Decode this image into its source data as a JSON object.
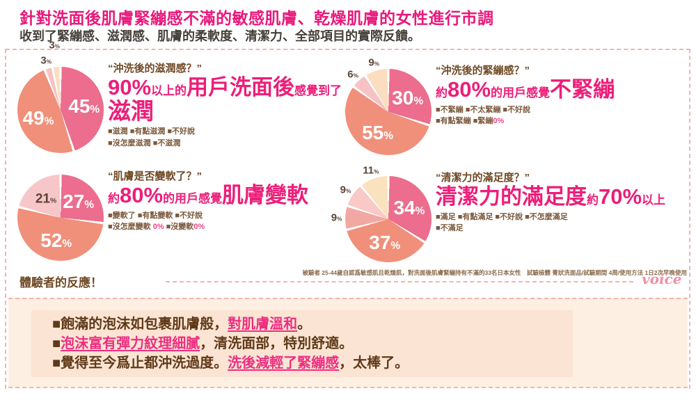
{
  "header": {
    "title": "針對洗面後肌膚緊繃感不滿的敏感肌膚、乾燥肌膚的女性進行市調",
    "subtitle": "收到了緊繃感、滋潤感、肌膚的柔軟度、清潔力、全部項目的實際反饋。"
  },
  "palette": {
    "title_pink": "#e9187b",
    "statement_pink": "#ed1e79",
    "question_brown": "#6f4a26",
    "legend_brown": "#7c5a3e",
    "dash_pink": "#f5b3b3",
    "box_cream": "#fdf0e2",
    "panel_peach": "#fbe4d3",
    "pie_dark_pink": "#ec6d8d",
    "pie_salmon": "#f0907a",
    "pie_light_pink": "#f6c2c4",
    "pie_cream": "#fbddc0"
  },
  "chart_data": [
    {
      "type": "pie",
      "question": "“沖洗後的滋潤感？”",
      "headline": [
        {
          "t": "90%",
          "big": 1
        },
        {
          "t": "以上的"
        },
        {
          "t": "用戶洗面後",
          "big": 1
        },
        {
          "t": "感覺到了"
        }
      ],
      "headline2": [
        {
          "t": "滋潤",
          "big": 1
        }
      ],
      "legend_lines": [
        [
          {
            "t": "■滋潤 ■有點滋潤 ■不好說"
          }
        ],
        [
          {
            "t": "■沒怎麼滋潤 ■不滋潤"
          }
        ]
      ],
      "labels": [
        "滋潤",
        "有點滋潤",
        "不好說",
        "沒怎麼滋潤"
      ],
      "values": [
        45,
        49,
        3,
        3
      ],
      "colors": [
        "#ec6d8d",
        "#f0907a",
        "#f6c2c4",
        "#fbddc0"
      ]
    },
    {
      "type": "pie",
      "question": "“沖洗後的緊繃感？”",
      "headline": [
        {
          "t": "約"
        },
        {
          "t": "80%",
          "big": 1
        },
        {
          "t": "的用戶感覺"
        },
        {
          "t": "不緊繃",
          "big": 1
        }
      ],
      "legend_lines": [
        [
          {
            "t": "■不緊繃 ■不太緊繃 ■不好說"
          }
        ],
        [
          {
            "t": "■有點緊繃 ■緊繃"
          },
          {
            "t": "0%",
            "pink": 1
          }
        ]
      ],
      "labels": [
        "不緊繃",
        "不太緊繃",
        "不好說",
        "有點緊繃"
      ],
      "values": [
        30,
        55,
        6,
        9
      ],
      "colors": [
        "#ec6d8d",
        "#f0907a",
        "#f6c2c4",
        "#fbddc0"
      ]
    },
    {
      "type": "pie",
      "question": "“肌膚是否變軟了？”",
      "headline": [
        {
          "t": "約"
        },
        {
          "t": "80%",
          "big": 1
        },
        {
          "t": "的用戶感覺"
        },
        {
          "t": "肌膚變軟",
          "big": 1
        }
      ],
      "legend_lines": [
        [
          {
            "t": "■變軟了 ■有點變軟 ■不好說"
          }
        ],
        [
          {
            "t": "■沒怎麼變軟 "
          },
          {
            "t": "0%",
            "pink": 1
          },
          {
            "t": " ■沒變軟"
          },
          {
            "t": "0%",
            "pink": 1
          }
        ]
      ],
      "labels": [
        "變軟了",
        "有點變軟",
        "不好說"
      ],
      "values": [
        27,
        52,
        21
      ],
      "colors": [
        "#ec6d8d",
        "#f0907a",
        "#f7c6c9"
      ]
    },
    {
      "type": "pie",
      "question": "“清潔力的滿足度？”",
      "headline": [
        {
          "t": "清潔力的滿足度",
          "big": 1
        },
        {
          "t": "約"
        },
        {
          "t": "70%",
          "big": 1
        },
        {
          "t": "以上"
        }
      ],
      "legend_lines": [
        [
          {
            "t": "■滿足 ■有點滿足 ■不好說 ■不怎麼滿足"
          }
        ],
        [
          {
            "t": "■不滿足"
          }
        ]
      ],
      "labels": [
        "滿足",
        "有點滿足",
        "不好說",
        "不怎麼滿足",
        "不滿足"
      ],
      "values": [
        34,
        37,
        9,
        9,
        11
      ],
      "colors": [
        "#ec6d8d",
        "#f0907a",
        "#f2a8a2",
        "#f8c9c6",
        "#fbe2bf"
      ]
    }
  ],
  "survey_note": "被驗者 25-44歲自認爲敏感肌且乾燥肌，對洗面後肌膚緊繃持有不滿的33名日本女性　試驗檢體 膏狀洗面品/試驗期間 4周/使用方法 1日2次早晚使用",
  "voice_section": {
    "heading": "體驗者的反應！",
    "script_label": "voice"
  },
  "feedback": {
    "items": [
      [
        {
          "t": "■飽滿的泡沫如包裹肌膚般，"
        },
        {
          "t": "對肌膚溫和",
          "pink": 1
        },
        {
          "t": "。"
        }
      ],
      [
        {
          "t": "■"
        },
        {
          "t": "泡沫富有彈力紋理細膩",
          "pink": 1
        },
        {
          "t": "，清洗面部，特別舒適。"
        }
      ],
      [
        {
          "t": "■覺得至今爲止都沖洗過度。"
        },
        {
          "t": "洗後減輕了緊繃感",
          "pink": 1
        },
        {
          "t": "，太棒了。"
        }
      ]
    ]
  }
}
